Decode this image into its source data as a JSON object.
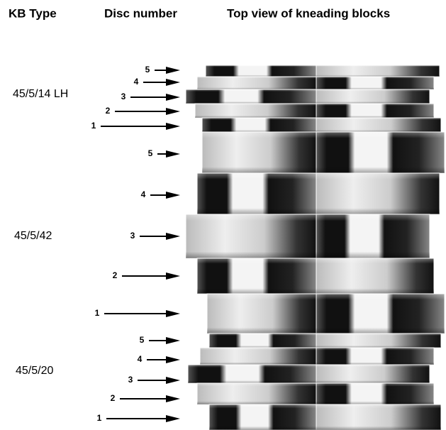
{
  "headers": [
    "KB Type",
    "Disc number",
    "Top view of kneading blocks"
  ],
  "groups": [
    {
      "type": "45/5/14 LH",
      "discs": [
        "5",
        "4",
        "3",
        "2",
        "1"
      ]
    },
    {
      "type": "45/5/42",
      "discs": [
        "5",
        "4",
        "3",
        "2",
        "1"
      ]
    },
    {
      "type": "45/5/20",
      "discs": [
        "5",
        "4",
        "3",
        "2",
        "1"
      ]
    }
  ]
}
